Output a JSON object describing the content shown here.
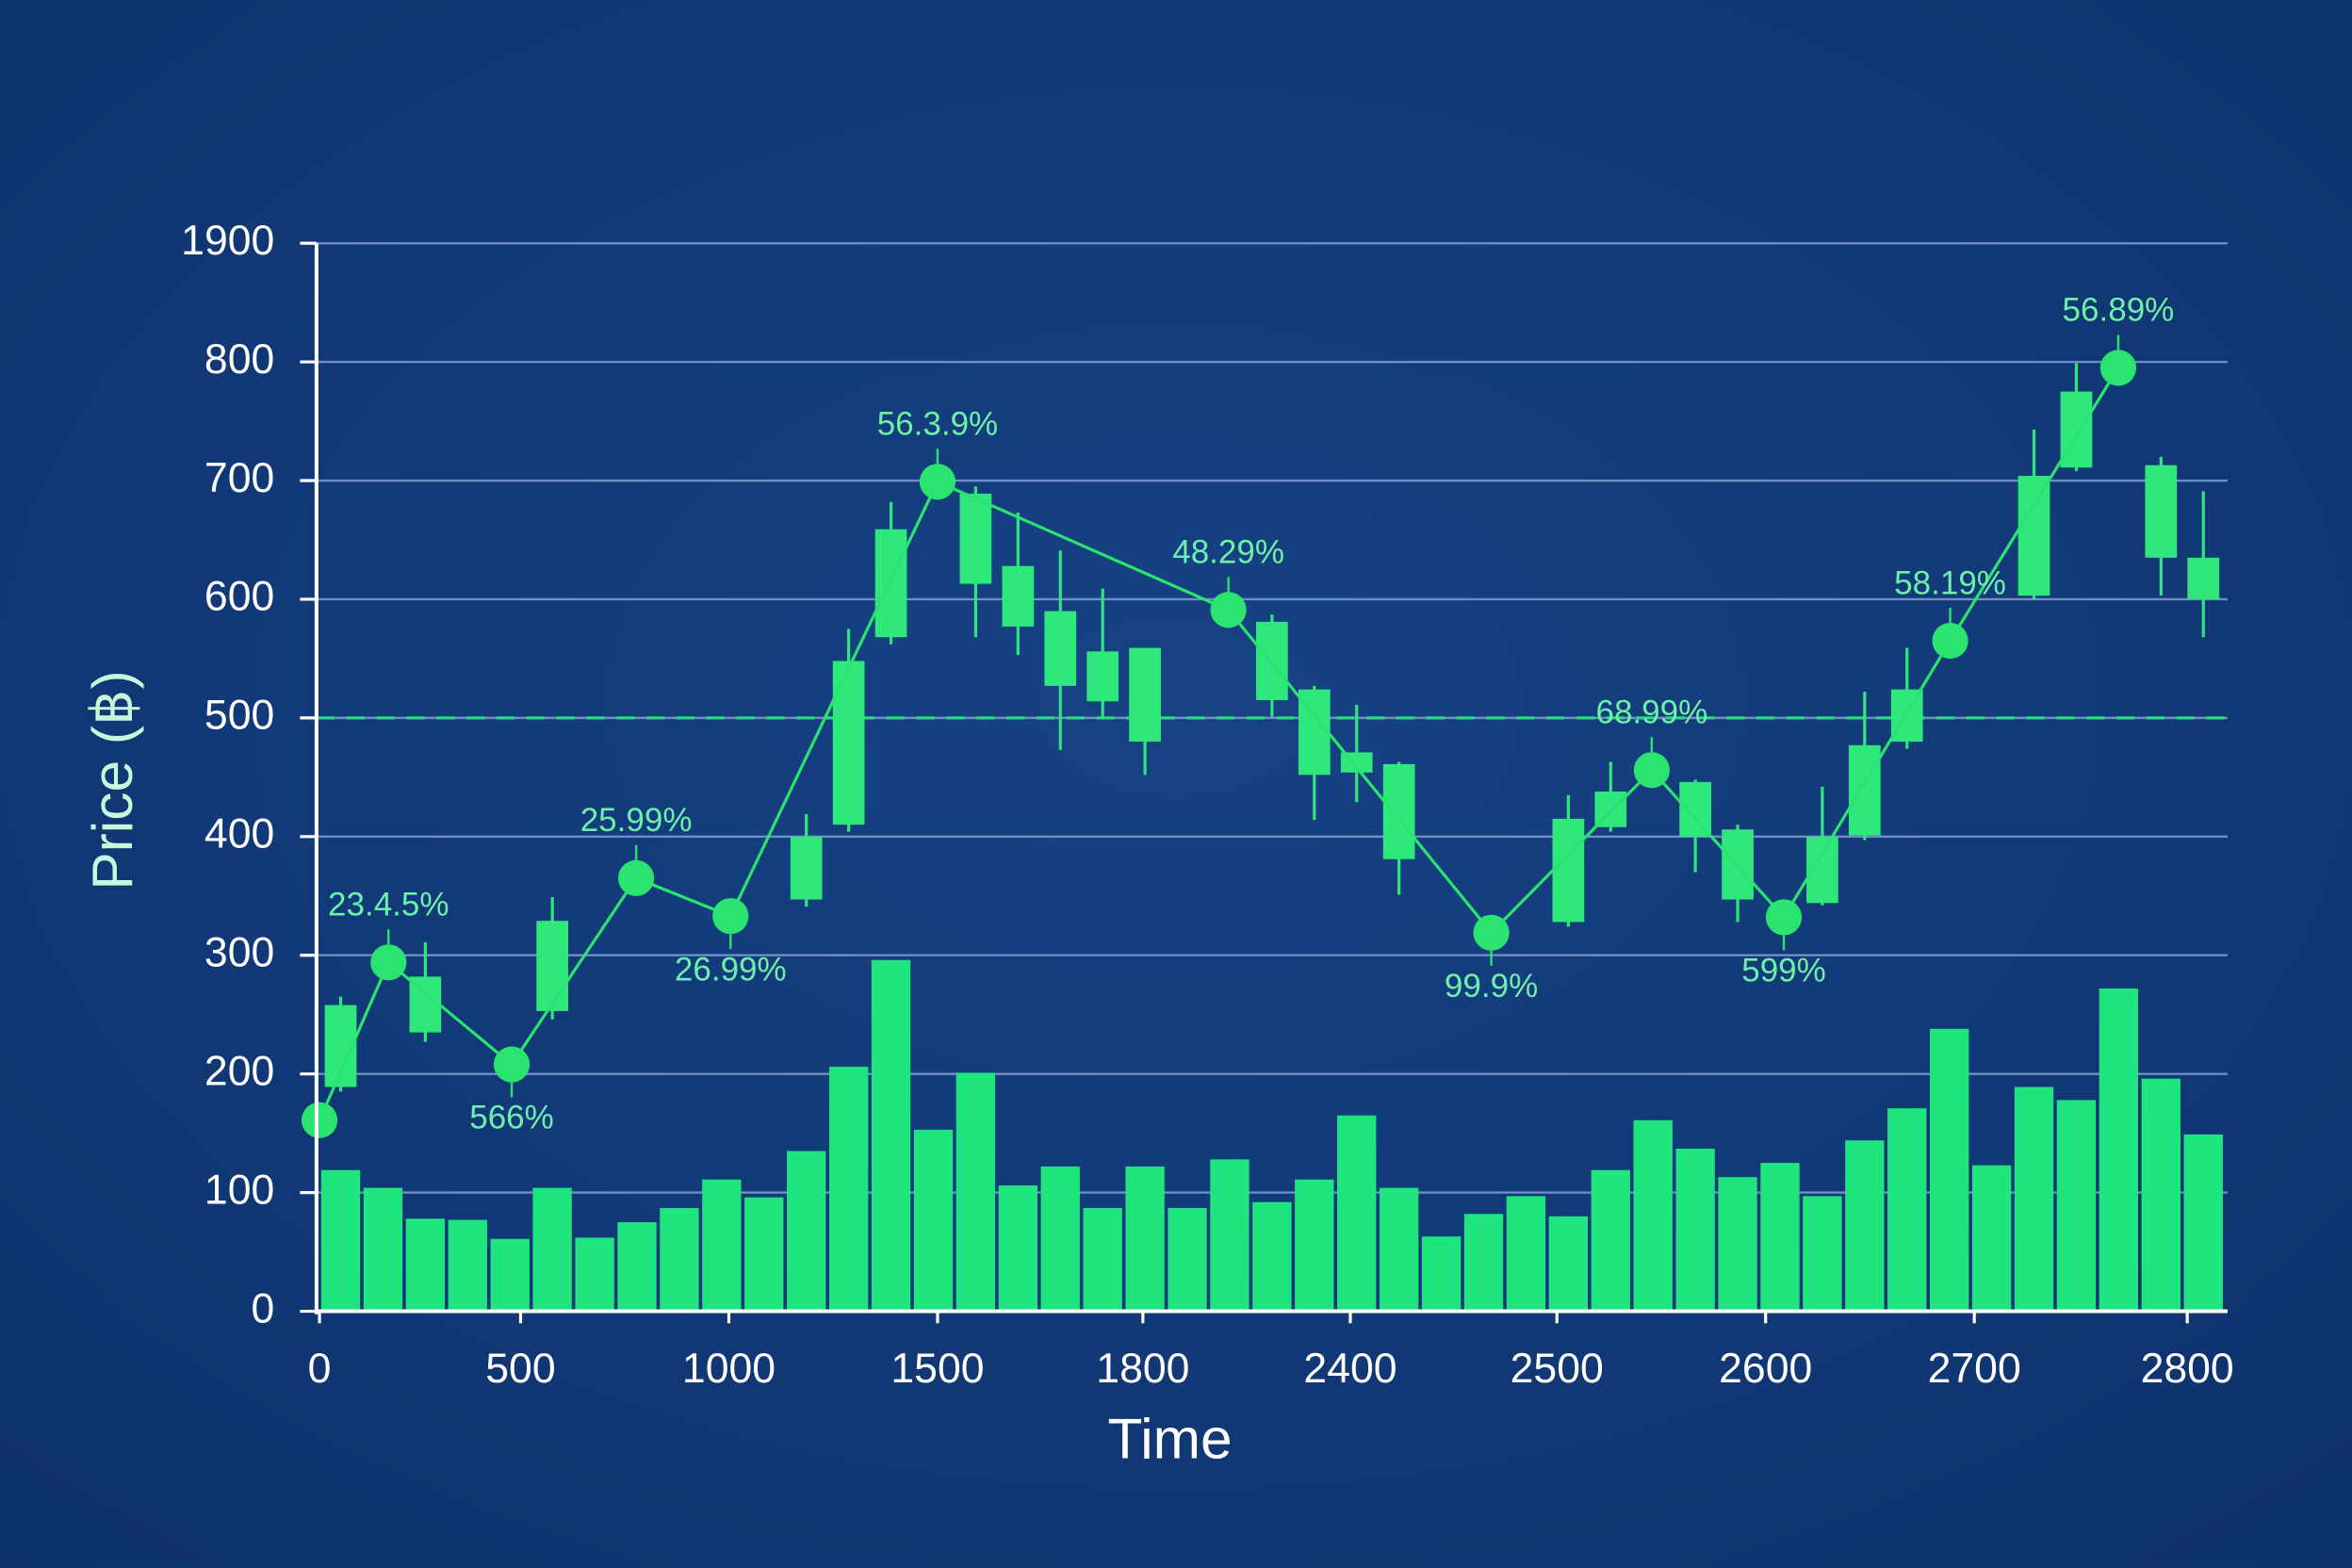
{
  "chart_data": {
    "type": "candlestick",
    "xlabel": "Time",
    "ylabel": "Price (฿)",
    "ylim": [
      0,
      900
    ],
    "yticks": [
      0,
      100,
      200,
      300,
      400,
      500,
      600,
      700,
      800,
      {
        "value": 900,
        "label": "1900"
      }
    ],
    "xlim": [
      0,
      45
    ],
    "xticks": [
      {
        "value": 0,
        "label": "0"
      },
      {
        "value": 4.75,
        "label": "500"
      },
      {
        "value": 9.67,
        "label": "1000"
      },
      {
        "value": 14.6,
        "label": "1500"
      },
      {
        "value": 19.45,
        "label": "1800"
      },
      {
        "value": 24.35,
        "label": "2400"
      },
      {
        "value": 29.23,
        "label": "2500"
      },
      {
        "value": 34.16,
        "label": "2600"
      },
      {
        "value": 39.09,
        "label": "2700"
      },
      {
        "value": 44.12,
        "label": "2800"
      }
    ],
    "grid": true,
    "reference_line": 500,
    "color": "#2fe87c",
    "candles": {
      "x": [
        0.5,
        2.5,
        5.5,
        11.5,
        12.5,
        13.5,
        15.5,
        16.5,
        17.5,
        18.5,
        19.5,
        22.5,
        23.5,
        24.5,
        25.5,
        29.5,
        30.5,
        32.5,
        33.5,
        35.5,
        36.5,
        37.5,
        40.5,
        41.5,
        43.5,
        44.5
      ],
      "open": [
        189,
        282,
        253,
        347,
        410,
        568,
        689,
        628,
        590,
        556,
        559,
        581,
        524,
        471,
        461,
        328,
        408,
        446,
        406,
        344,
        401,
        480,
        603,
        711,
        713,
        635
      ],
      "close": [
        258,
        235,
        329,
        400,
        548,
        659,
        613,
        577,
        527,
        514,
        480,
        515,
        452,
        454,
        381,
        415,
        438,
        400,
        347,
        400,
        477,
        524,
        704,
        775,
        635,
        600
      ],
      "high": [
        265,
        311,
        349,
        419,
        575,
        682,
        695,
        673,
        641,
        609,
        559,
        587,
        527,
        511,
        463,
        435,
        463,
        448,
        410,
        442,
        522,
        559,
        743,
        799,
        720,
        691
      ],
      "low": [
        185,
        227,
        246,
        341,
        404,
        562,
        568,
        553,
        473,
        499,
        452,
        501,
        414,
        429,
        351,
        324,
        404,
        370,
        328,
        342,
        397,
        474,
        600,
        708,
        603,
        568
      ]
    },
    "volume": {
      "color": "#1fe57f",
      "x": [
        0.5,
        1.5,
        2.5,
        3.5,
        4.5,
        5.5,
        6.5,
        7.5,
        8.5,
        9.5,
        10.5,
        11.5,
        12.5,
        13.5,
        14.5,
        15.5,
        16.5,
        17.5,
        18.5,
        19.5,
        20.5,
        21.5,
        22.5,
        23.5,
        24.5,
        25.5,
        26.5,
        27.5,
        28.5,
        29.5,
        30.5,
        31.5,
        32.5,
        33.5,
        34.5,
        35.5,
        36.5,
        37.5,
        38.5,
        39.5,
        40.5,
        41.5,
        42.5,
        43.5,
        44.5
      ],
      "values": [
        119,
        104,
        78,
        77,
        61,
        104,
        62,
        75,
        87,
        111,
        96,
        135,
        206,
        296,
        153,
        201,
        106,
        122,
        87,
        122,
        87,
        128,
        92,
        111,
        165,
        104,
        63,
        82,
        97,
        80,
        119,
        161,
        137,
        113,
        125,
        97,
        144,
        171,
        238,
        123,
        189,
        178,
        272,
        196,
        149
      ]
    },
    "markers": {
      "color": "#2be36f",
      "x": [
        0,
        1.63,
        4.54,
        7.48,
        9.71,
        14.6,
        21.47,
        27.68,
        31.47,
        34.59,
        38.52,
        42.49
      ],
      "values": [
        161,
        294,
        208,
        365,
        333,
        699,
        591,
        319,
        456,
        332,
        565,
        795
      ],
      "labels": [
        null,
        "23.4.5%",
        "566%",
        "25.99%",
        "26.99%",
        "56.3.9%",
        "48.29%",
        "99.9%",
        "68.99%",
        "599%",
        "58.19%",
        "56.89%"
      ],
      "label_position": [
        null,
        "above",
        "below",
        "above",
        "below",
        "above",
        "above",
        "below",
        "above",
        "below",
        "above",
        "above"
      ]
    }
  }
}
